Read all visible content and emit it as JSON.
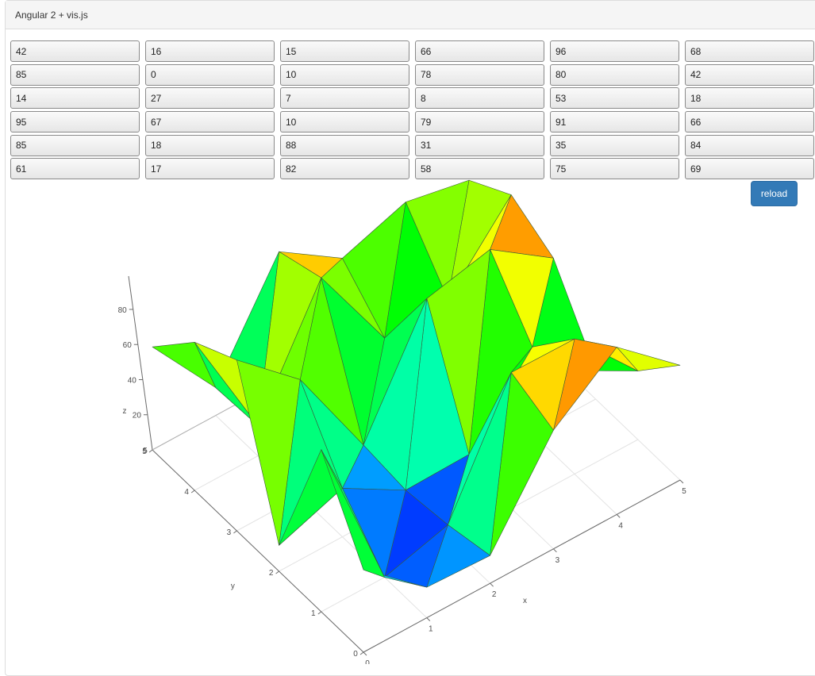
{
  "header": {
    "title": "Angular 2 + vis.js"
  },
  "table": {
    "rows": [
      [
        "42",
        "16",
        "15",
        "66",
        "96",
        "68"
      ],
      [
        "85",
        "0",
        "10",
        "78",
        "80",
        "42"
      ],
      [
        "14",
        "27",
        "7",
        "8",
        "53",
        "18"
      ],
      [
        "95",
        "67",
        "10",
        "79",
        "91",
        "66"
      ],
      [
        "85",
        "18",
        "88",
        "31",
        "35",
        "84"
      ],
      [
        "61",
        "17",
        "82",
        "58",
        "75",
        "69"
      ]
    ]
  },
  "toolbar": {
    "reload_label": "reload"
  },
  "chart_data": {
    "type": "surface",
    "x_label": "x",
    "y_label": "y",
    "z_label": "z",
    "x_ticks": [
      "0",
      "1",
      "2",
      "3",
      "4",
      "5"
    ],
    "y_ticks": [
      "0",
      "1",
      "2",
      "3",
      "4",
      "5"
    ],
    "z_ticks": [
      "20",
      "40",
      "60",
      "80"
    ],
    "xlim": [
      0,
      5
    ],
    "ylim": [
      0,
      5
    ],
    "zlim": [
      0,
      95
    ],
    "grid": true
  }
}
